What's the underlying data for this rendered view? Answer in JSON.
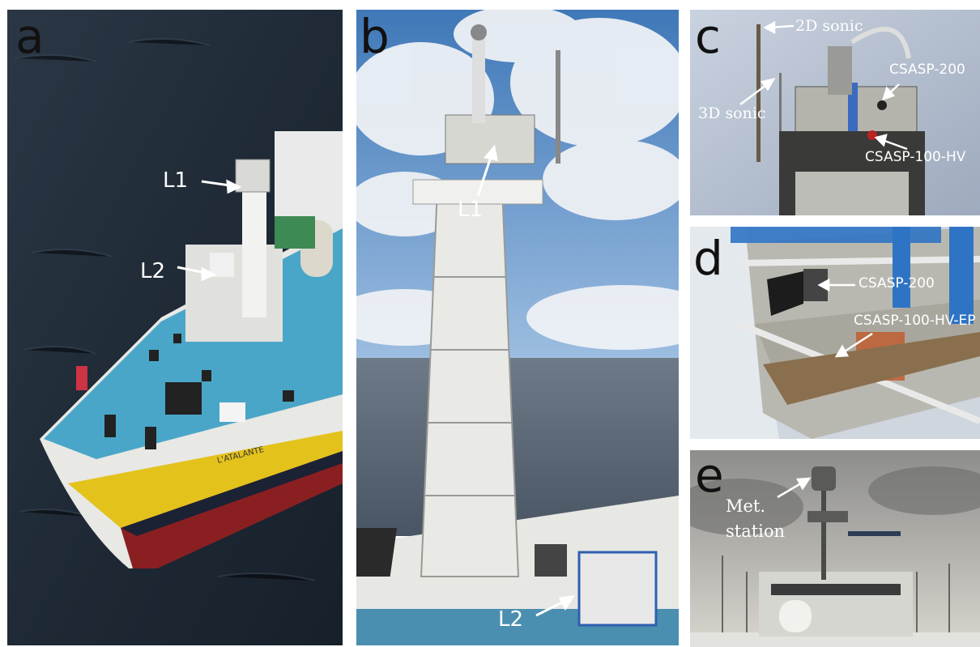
{
  "panels": {
    "a": {
      "label": "a",
      "annotations": {
        "l1": "L1",
        "l2": "L2"
      },
      "ship_name": "L'ATALANTE"
    },
    "b": {
      "label": "b",
      "annotations": {
        "l1": "L1",
        "l2": "L2"
      }
    },
    "c": {
      "label": "c",
      "annotations": {
        "sonic2d": "2D sonic",
        "sonic3d": "3D sonic",
        "csasp200": "CSASP-200",
        "csasp100hv": "CSASP-100-HV"
      }
    },
    "d": {
      "label": "d",
      "annotations": {
        "csasp200": "CSASP-200",
        "csasp100hvep": "CSASP-100-HV-EP"
      }
    },
    "e": {
      "label": "e",
      "annotations": {
        "met_line1": "Met.",
        "met_line2": "station"
      }
    }
  },
  "colors": {
    "sea_dark": "#1f2a36",
    "deck_blue": "#4aa6c8",
    "hull_white": "#e8e8e4",
    "hull_yellow": "#e4c21c",
    "hull_red": "#8a1f22",
    "sky_blue": "#5b8fc4",
    "cloud": "#e9edf2",
    "annotation": "#ffffff"
  }
}
